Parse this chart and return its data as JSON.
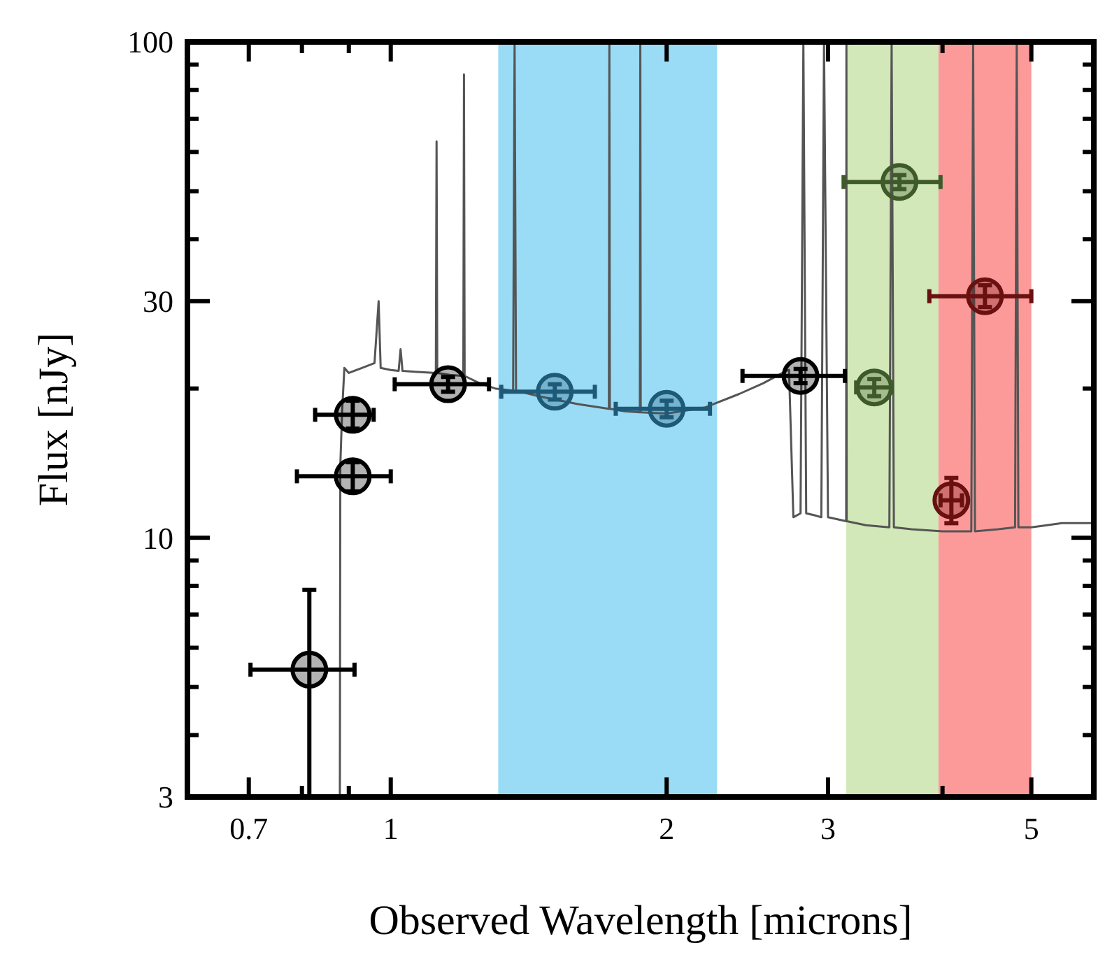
{
  "chart_data": {
    "type": "scatter",
    "xlabel": "Observed Wavelength [microns]",
    "ylabel": "Flux [nJy]",
    "log": "xy",
    "grid": false,
    "xlim": [
      0.6,
      5.85
    ],
    "ylim": [
      3,
      100
    ],
    "xticks": [
      0.7,
      {
        "value": 0.8,
        "label": null
      },
      {
        "value": 0.9,
        "label": null
      },
      1,
      2,
      3,
      {
        "value": 4,
        "label": null
      },
      5
    ],
    "yticks": [
      3,
      {
        "value": 4,
        "label": null
      },
      {
        "value": 5,
        "label": null
      },
      {
        "value": 6,
        "label": null
      },
      {
        "value": 7,
        "label": null
      },
      {
        "value": 8,
        "label": null
      },
      {
        "value": 9,
        "label": null
      },
      10,
      {
        "value": 20,
        "label": null
      },
      30,
      {
        "value": 40,
        "label": null
      },
      {
        "value": 50,
        "label": null
      },
      {
        "value": 60,
        "label": null
      },
      {
        "value": 70,
        "label": null
      },
      {
        "value": 80,
        "label": null
      },
      {
        "value": 90,
        "label": null
      },
      100
    ],
    "bands": [
      {
        "axis": "x",
        "from": 1.31,
        "to": 2.27,
        "color": "#9adcf5"
      },
      {
        "axis": "x",
        "from": 3.14,
        "to": 3.96,
        "color": "#d2e8b8"
      },
      {
        "axis": "x",
        "from": 3.96,
        "to": 5.0,
        "color": "#fc9a9a"
      }
    ],
    "series": [
      {
        "type": "line",
        "color": "#555555",
        "x": [
          0.88,
          0.881,
          0.885,
          0.89,
          0.9,
          0.93,
          0.96,
          0.97,
          0.975,
          1.0,
          1.02,
          1.025,
          1.03,
          1.07,
          1.12,
          1.122,
          1.124,
          1.16,
          1.2,
          1.202,
          1.204,
          1.25,
          1.3,
          1.36,
          1.365,
          1.37,
          1.45,
          1.6,
          1.73,
          1.732,
          1.734,
          1.8,
          1.87,
          1.872,
          1.874,
          2.0,
          2.2,
          2.4,
          2.55,
          2.7,
          2.72,
          2.75,
          2.8,
          2.82,
          2.84,
          2.9,
          2.95,
          2.97,
          3.0,
          3.14,
          3.142,
          3.144,
          3.3,
          3.5,
          3.52,
          3.54,
          3.7,
          4.0,
          4.3,
          4.32,
          4.34,
          4.6,
          4.8,
          4.82,
          4.84,
          5.0,
          5.2,
          5.4,
          5.6,
          5.85
        ],
        "values": [
          3,
          14,
          18,
          22,
          21.5,
          22,
          22.5,
          30,
          22,
          21.8,
          21.7,
          24,
          21.7,
          21.6,
          21.5,
          63,
          21.5,
          21.3,
          21.2,
          86,
          21.2,
          20.5,
          20,
          19.8,
          100,
          19.8,
          19.3,
          18.6,
          18.2,
          100,
          18.2,
          18,
          17.9,
          100,
          17.9,
          17.8,
          18.3,
          19.5,
          20.5,
          21.7,
          21.8,
          11,
          11.2,
          100,
          11.2,
          11.1,
          11,
          100,
          11,
          10.8,
          100,
          10.8,
          10.6,
          10.5,
          100,
          10.5,
          10.4,
          10.3,
          10.3,
          100,
          10.3,
          10.4,
          10.5,
          100,
          10.5,
          10.5,
          10.6,
          10.7,
          10.7,
          10.7
        ]
      },
      {
        "marker": "circle",
        "x": [
          0.815,
          0.909,
          0.909,
          1.155,
          1.51,
          2.0,
          2.8,
          3.37,
          3.59,
          4.45,
          4.09
        ],
        "values": [
          5.42,
          13.3,
          17.7,
          20.4,
          19.7,
          18.2,
          21.2,
          20.1,
          52.2,
          30.7,
          11.9
        ],
        "errors": [
          [
            3,
            7.85
          ],
          [
            12.4,
            14.2
          ],
          [
            16.6,
            18.9
          ],
          [
            19.7,
            21.1
          ],
          [
            19.0,
            20.4
          ],
          [
            17.5,
            18.9
          ],
          [
            20.5,
            21.9
          ],
          [
            19.3,
            20.9
          ],
          [
            50.5,
            53.9
          ],
          [
            29.2,
            32.3
          ],
          [
            10.7,
            13.2
          ]
        ],
        "xerrors": [
          [
            0.703,
            0.913
          ],
          [
            0.79,
            1.0
          ],
          [
            0.827,
            0.958
          ],
          [
            1.01,
            1.28
          ],
          [
            1.32,
            1.67
          ],
          [
            1.76,
            2.23
          ],
          [
            2.42,
            3.13
          ],
          [
            3.22,
            3.52
          ],
          [
            3.12,
            3.98
          ],
          [
            3.87,
            5.0
          ],
          [
            3.98,
            4.2
          ]
        ],
        "colors": [
          "#000000",
          "#000000",
          "#000000",
          "#000000",
          "#1e5a78",
          "#1e5a78",
          "#000000",
          "#3f5a2a",
          "#3f5a2a",
          "#6a1010",
          "#6a1010"
        ]
      }
    ]
  }
}
